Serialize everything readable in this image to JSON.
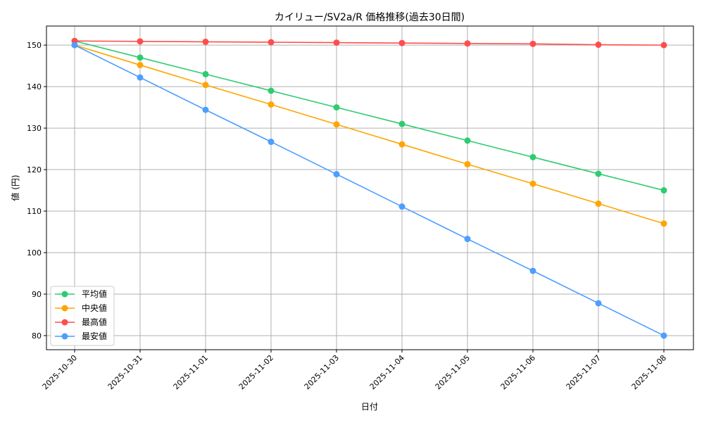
{
  "chart_data": {
    "type": "line",
    "title": "カイリュー/SV2a/R 価格推移(過去30日間)",
    "xlabel": "日付",
    "ylabel": "値 (円)",
    "categories": [
      "2025-10-30",
      "2025-10-31",
      "2025-11-01",
      "2025-11-02",
      "2025-11-03",
      "2025-11-04",
      "2025-11-05",
      "2025-11-06",
      "2025-11-07",
      "2025-11-08"
    ],
    "yticks": [
      80,
      90,
      100,
      110,
      120,
      130,
      140,
      150
    ],
    "ylim": [
      76.6,
      154.6
    ],
    "grid": true,
    "legend_position": "lower-left",
    "series": [
      {
        "name": "平均値",
        "color": "#2ecc71",
        "values": [
          151,
          147,
          143,
          139,
          135,
          131,
          127,
          123,
          119,
          115
        ]
      },
      {
        "name": "中央値",
        "color": "#ffa500",
        "values": [
          150,
          145.2,
          140.4,
          135.7,
          130.9,
          126.1,
          121.3,
          116.6,
          111.8,
          107
        ]
      },
      {
        "name": "最高値",
        "color": "#ff4d4d",
        "values": [
          151,
          150.9,
          150.8,
          150.7,
          150.6,
          150.5,
          150.4,
          150.3,
          150.1,
          150
        ]
      },
      {
        "name": "最安値",
        "color": "#4d9eff",
        "values": [
          150,
          142.2,
          134.4,
          126.7,
          118.9,
          111.1,
          103.3,
          95.6,
          87.8,
          80
        ]
      }
    ]
  }
}
